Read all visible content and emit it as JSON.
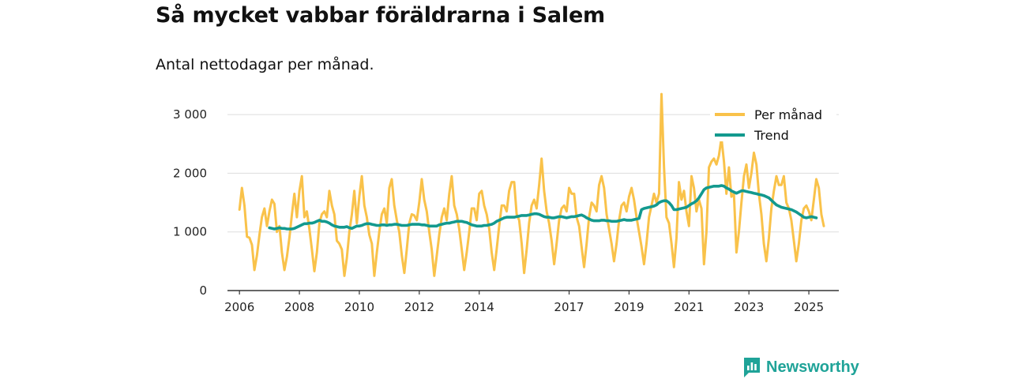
{
  "title": "Så mycket vabbar föräldrarna i Salem",
  "subtitle": "Antal nettodagar per månad.",
  "brand": {
    "name": "Newsworthy",
    "color": "#1fa398"
  },
  "colors": {
    "per_month": "#f9c24a",
    "trend": "#13998e",
    "grid": "#dddddd",
    "axis": "#333333"
  },
  "chart_data": {
    "type": "line",
    "title": "Så mycket vabbar föräldrarna i Salem",
    "subtitle": "Antal nettodagar per månad.",
    "xlabel": "",
    "ylabel": "",
    "x_start": {
      "year": 2006,
      "month": 1
    },
    "xlim": [
      2005.6,
      2026.0
    ],
    "ylim": [
      0,
      3500
    ],
    "y_ticks": [
      {
        "value": 0,
        "label": "0"
      },
      {
        "value": 1000,
        "label": "1 000"
      },
      {
        "value": 2000,
        "label": "2 000"
      },
      {
        "value": 3000,
        "label": "3 000"
      }
    ],
    "x_ticks": [
      {
        "value": 2006,
        "label": "2006"
      },
      {
        "value": 2008,
        "label": "2008"
      },
      {
        "value": 2010,
        "label": "2010"
      },
      {
        "value": 2012,
        "label": "2012"
      },
      {
        "value": 2014,
        "label": "2014"
      },
      {
        "value": 2017,
        "label": "2017"
      },
      {
        "value": 2019,
        "label": "2019"
      },
      {
        "value": 2021,
        "label": "2021"
      },
      {
        "value": 2023,
        "label": "2023"
      },
      {
        "value": 2025,
        "label": "2025"
      }
    ],
    "legend_position": "top-right",
    "series": [
      {
        "name": "Per månad",
        "start_month_index": 0,
        "values": [
          1380,
          1750,
          1450,
          920,
          900,
          780,
          350,
          600,
          950,
          1250,
          1400,
          1100,
          1350,
          1550,
          1480,
          1000,
          1100,
          650,
          350,
          580,
          900,
          1300,
          1650,
          1250,
          1700,
          1950,
          1250,
          1350,
          1050,
          700,
          330,
          650,
          1150,
          1300,
          1350,
          1250,
          1700,
          1450,
          1300,
          850,
          800,
          700,
          250,
          550,
          1000,
          1300,
          1700,
          1150,
          1600,
          1950,
          1450,
          1250,
          950,
          800,
          250,
          650,
          1000,
          1300,
          1400,
          1150,
          1750,
          1900,
          1450,
          1200,
          1000,
          600,
          300,
          700,
          1150,
          1300,
          1280,
          1200,
          1500,
          1900,
          1550,
          1350,
          1000,
          700,
          250,
          600,
          950,
          1250,
          1400,
          1200,
          1650,
          1950,
          1450,
          1300,
          1050,
          700,
          350,
          650,
          1000,
          1400,
          1400,
          1200,
          1650,
          1700,
          1450,
          1300,
          1050,
          650,
          350,
          700,
          1100,
          1450,
          1450,
          1350,
          1700,
          1850,
          1850,
          1300,
          1200,
          800,
          300,
          700,
          1150,
          1450,
          1550,
          1400,
          1800,
          2250,
          1700,
          1350,
          1150,
          850,
          450,
          800,
          1200,
          1400,
          1450,
          1350,
          1750,
          1650,
          1650,
          1250,
          1100,
          750,
          400,
          800,
          1250,
          1500,
          1450,
          1350,
          1800,
          1950,
          1750,
          1300,
          1050,
          800,
          500,
          800,
          1200,
          1450,
          1500,
          1350,
          1600,
          1750,
          1550,
          1250,
          1000,
          750,
          450,
          800,
          1250,
          1450,
          1650,
          1500,
          1650,
          3350,
          2100,
          1250,
          1150,
          800,
          400,
          900,
          1850,
          1550,
          1700,
          1350,
          1100,
          1950,
          1750,
          1350,
          1550,
          1400,
          450,
          1000,
          2100,
          2200,
          2250,
          2150,
          2300,
          2600,
          2200,
          1650,
          2100,
          1600,
          1650,
          650,
          1000,
          1500,
          1950,
          2150,
          1750,
          2000,
          2350,
          2150,
          1650,
          1300,
          800,
          500,
          900,
          1400,
          1700,
          1950,
          1800,
          1800,
          1950,
          1500,
          1400,
          1200,
          850,
          500,
          800,
          1200,
          1400,
          1450,
          1350,
          1200,
          1550,
          1900,
          1750,
          1300,
          1100
        ]
      },
      {
        "name": "Trend",
        "start_month_index": 12,
        "values": [
          1070,
          1060,
          1050,
          1060,
          1070,
          1060,
          1060,
          1050,
          1050,
          1050,
          1060,
          1080,
          1100,
          1120,
          1140,
          1140,
          1150,
          1150,
          1160,
          1180,
          1200,
          1180,
          1180,
          1170,
          1150,
          1120,
          1100,
          1090,
          1080,
          1080,
          1080,
          1090,
          1070,
          1060,
          1080,
          1100,
          1100,
          1110,
          1130,
          1140,
          1140,
          1130,
          1120,
          1110,
          1110,
          1120,
          1120,
          1110,
          1120,
          1120,
          1130,
          1130,
          1120,
          1110,
          1110,
          1110,
          1120,
          1130,
          1130,
          1130,
          1130,
          1120,
          1120,
          1110,
          1100,
          1100,
          1100,
          1100,
          1120,
          1130,
          1140,
          1150,
          1150,
          1160,
          1170,
          1180,
          1180,
          1180,
          1170,
          1160,
          1140,
          1120,
          1110,
          1100,
          1100,
          1100,
          1110,
          1110,
          1120,
          1130,
          1150,
          1180,
          1200,
          1220,
          1240,
          1250,
          1250,
          1250,
          1250,
          1260,
          1270,
          1280,
          1280,
          1280,
          1290,
          1300,
          1310,
          1310,
          1300,
          1280,
          1260,
          1250,
          1250,
          1240,
          1240,
          1250,
          1260,
          1260,
          1250,
          1240,
          1250,
          1260,
          1260,
          1270,
          1280,
          1290,
          1270,
          1240,
          1220,
          1200,
          1190,
          1190,
          1190,
          1200,
          1200,
          1190,
          1190,
          1180,
          1180,
          1180,
          1190,
          1200,
          1210,
          1200,
          1200,
          1200,
          1210,
          1220,
          1230,
          1380,
          1400,
          1410,
          1420,
          1430,
          1440,
          1460,
          1500,
          1520,
          1530,
          1530,
          1500,
          1450,
          1380,
          1380,
          1390,
          1400,
          1410,
          1420,
          1450,
          1480,
          1500,
          1530,
          1580,
          1650,
          1720,
          1750,
          1760,
          1770,
          1780,
          1780,
          1780,
          1790,
          1780,
          1750,
          1730,
          1700,
          1680,
          1660,
          1680,
          1700,
          1700,
          1690,
          1680,
          1670,
          1660,
          1650,
          1640,
          1630,
          1620,
          1600,
          1580,
          1540,
          1500,
          1460,
          1440,
          1420,
          1410,
          1400,
          1390,
          1380,
          1360,
          1340,
          1310,
          1280,
          1250,
          1240,
          1250,
          1260,
          1250,
          1240
        ]
      }
    ]
  }
}
